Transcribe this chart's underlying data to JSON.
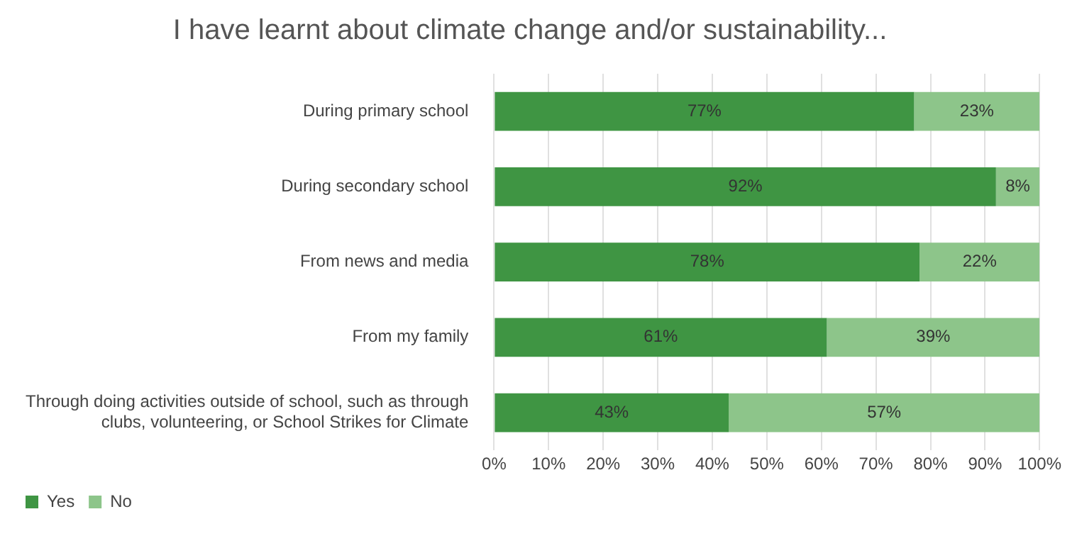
{
  "chart_data": {
    "type": "bar",
    "orientation": "horizontal",
    "stacked": true,
    "title": "I have learnt about climate change and/or sustainability...",
    "categories": [
      "During primary school",
      "During secondary school",
      "From news and media",
      "From my family",
      "Through doing activities outside of school, such as through clubs, volunteering, or School Strikes for Climate"
    ],
    "series": [
      {
        "name": "Yes",
        "color": "#3f9543",
        "values": [
          77,
          92,
          78,
          61,
          43
        ],
        "value_labels": [
          "77%",
          "92%",
          "78%",
          "61%",
          "43%"
        ]
      },
      {
        "name": "No",
        "color": "#8dc58a",
        "values": [
          23,
          8,
          22,
          39,
          57
        ],
        "value_labels": [
          "23%",
          "8%",
          "22%",
          "39%",
          "57%"
        ]
      }
    ],
    "xlim": [
      0,
      100
    ],
    "xticks": [
      {
        "value": 0,
        "label": "0%"
      },
      {
        "value": 10,
        "label": "10%"
      },
      {
        "value": 20,
        "label": "20%"
      },
      {
        "value": 30,
        "label": "30%"
      },
      {
        "value": 40,
        "label": "40%"
      },
      {
        "value": 50,
        "label": "50%"
      },
      {
        "value": 60,
        "label": "60%"
      },
      {
        "value": 70,
        "label": "70%"
      },
      {
        "value": 80,
        "label": "80%"
      },
      {
        "value": 90,
        "label": "90%"
      },
      {
        "value": 100,
        "label": "100%"
      }
    ],
    "grid": "x",
    "legend": "bottom left"
  }
}
